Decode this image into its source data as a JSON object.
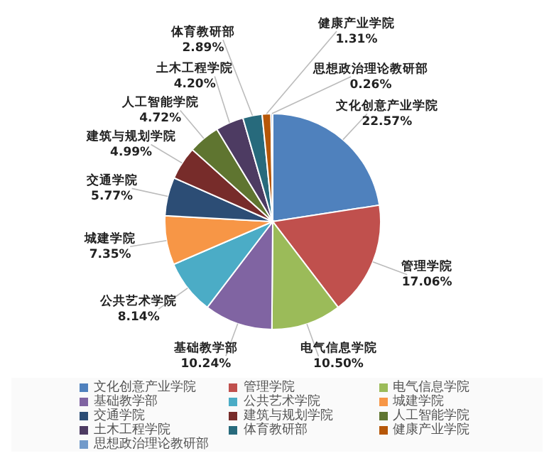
{
  "chart_data": {
    "type": "pie",
    "categories": [
      "文化创意产业学院",
      "管理学院",
      "电气信息学院",
      "基础教学部",
      "公共艺术学院",
      "城建学院",
      "交通学院",
      "建筑与规划学院",
      "人工智能学院",
      "土木工程学院",
      "体育教研部",
      "健康产业学院",
      "思想政治理论教研部"
    ],
    "values": [
      22.57,
      17.06,
      10.5,
      10.24,
      8.14,
      7.35,
      5.77,
      4.99,
      4.72,
      4.2,
      2.89,
      1.31,
      0.26
    ],
    "colors": [
      "#4f81bd",
      "#c0504d",
      "#9bbb59",
      "#8064a2",
      "#4bacc6",
      "#f79646",
      "#2c4d75",
      "#772c2a",
      "#5f7530",
      "#4d3b62",
      "#276a7c",
      "#b65708",
      "#729aca"
    ],
    "value_labels": [
      "22.57%",
      "17.06%",
      "10.50%",
      "10.24%",
      "8.14%",
      "7.35%",
      "5.77%",
      "4.99%",
      "4.72%",
      "4.20%",
      "2.89%",
      "1.31%",
      "0.26%"
    ],
    "legend": "bottom"
  }
}
